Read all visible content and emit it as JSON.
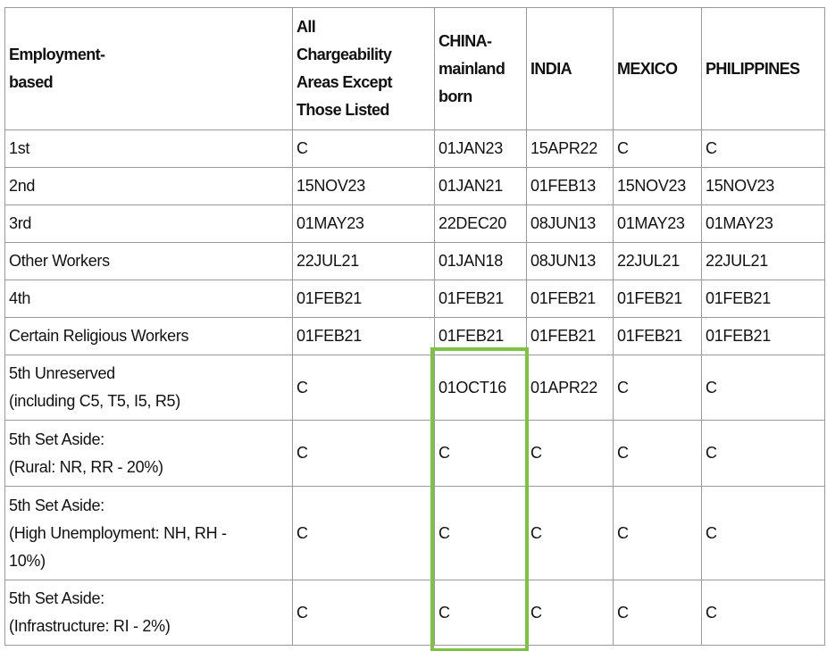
{
  "table": {
    "header": [
      [
        "Employment-",
        "based"
      ],
      [
        "All",
        "Chargeability",
        "Areas Except",
        "Those Listed"
      ],
      [
        "CHINA-",
        "mainland",
        "born"
      ],
      "INDIA",
      "MEXICO",
      "PHILIPPINES"
    ],
    "rows": [
      [
        "1st",
        "C",
        "01JAN23",
        "15APR22",
        "C",
        "C"
      ],
      [
        "2nd",
        "15NOV23",
        "01JAN21",
        "01FEB13",
        "15NOV23",
        "15NOV23"
      ],
      [
        "3rd",
        "01MAY23",
        "22DEC20",
        "08JUN13",
        "01MAY23",
        "01MAY23"
      ],
      [
        "Other Workers",
        "22JUL21",
        "01JAN18",
        "08JUN13",
        "22JUL21",
        "22JUL21"
      ],
      [
        "4th",
        "01FEB21",
        "01FEB21",
        "01FEB21",
        "01FEB21",
        "01FEB21"
      ],
      [
        "Certain Religious Workers",
        "01FEB21",
        "01FEB21",
        "01FEB21",
        "01FEB21",
        "01FEB21"
      ],
      [
        [
          "5th Unreserved",
          "(including C5, T5, I5, R5)"
        ],
        "C",
        "01OCT16",
        "01APR22",
        "C",
        "C"
      ],
      [
        [
          "5th Set Aside:",
          "(Rural: NR, RR - 20%)"
        ],
        "C",
        "C",
        "C",
        "C",
        "C"
      ],
      [
        [
          "5th Set Aside:",
          "(High Unemployment: NH, RH -",
          "10%)"
        ],
        "C",
        "C",
        "C",
        "C",
        "C"
      ],
      [
        [
          "5th Set Aside:",
          "(Infrastructure: RI - 2%)"
        ],
        "C",
        "C",
        "C",
        "C",
        "C"
      ]
    ]
  }
}
